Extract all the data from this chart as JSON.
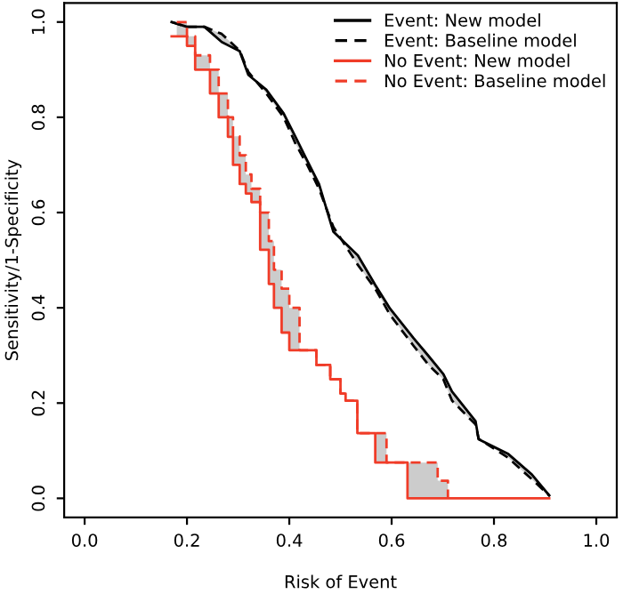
{
  "chart_data": {
    "type": "line",
    "xlabel": "Risk of Event",
    "ylabel": "Sensitivity/1-Specificity",
    "xlim": [
      -0.04,
      1.04
    ],
    "ylim": [
      -0.04,
      1.04
    ],
    "xticks": [
      {
        "value": 0,
        "label": "0.0"
      },
      {
        "value": 0.2,
        "label": "0.2"
      },
      {
        "value": 0.4,
        "label": "0.4"
      },
      {
        "value": 0.6,
        "label": "0.6"
      },
      {
        "value": 0.8,
        "label": "0.8"
      },
      {
        "value": 1,
        "label": "1.0"
      }
    ],
    "yticks": [
      {
        "value": 0,
        "label": "0.0"
      },
      {
        "value": 0.2,
        "label": "0.2"
      },
      {
        "value": 0.4,
        "label": "0.4"
      },
      {
        "value": 0.6,
        "label": "0.6"
      },
      {
        "value": 0.8,
        "label": "0.8"
      },
      {
        "value": 1,
        "label": "1.0"
      }
    ],
    "grid": false,
    "legend": "top right",
    "series": [
      {
        "name": "Event: New model",
        "color": "#000000",
        "line_style": "solid",
        "x": [
          0.17,
          0.2,
          0.234,
          0.268,
          0.303,
          0.32,
          0.355,
          0.389,
          0.412,
          0.435,
          0.458,
          0.486,
          0.534,
          0.568,
          0.597,
          0.643,
          0.672,
          0.701,
          0.718,
          0.764,
          0.77,
          0.828,
          0.874,
          0.908
        ],
        "values": [
          1.0,
          0.99,
          0.99,
          0.958,
          0.939,
          0.889,
          0.858,
          0.808,
          0.759,
          0.709,
          0.66,
          0.56,
          0.51,
          0.448,
          0.398,
          0.336,
          0.299,
          0.261,
          0.224,
          0.162,
          0.124,
          0.093,
          0.05,
          0.006
        ]
      },
      {
        "name": "Event: Baseline model",
        "color": "#000000",
        "line_style": "dashed",
        "x": [
          0.17,
          0.2,
          0.234,
          0.268,
          0.303,
          0.32,
          0.355,
          0.389,
          0.412,
          0.435,
          0.458,
          0.486,
          0.534,
          0.568,
          0.597,
          0.643,
          0.672,
          0.701,
          0.718,
          0.764,
          0.77,
          0.828,
          0.874,
          0.908
        ],
        "values": [
          1.0,
          0.99,
          0.99,
          0.975,
          0.94,
          0.895,
          0.85,
          0.8,
          0.745,
          0.7,
          0.65,
          0.57,
          0.49,
          0.44,
          0.385,
          0.32,
          0.28,
          0.25,
          0.205,
          0.155,
          0.125,
          0.085,
          0.04,
          0.006
        ],
        "lower": [
          1.0,
          0.99,
          0.99,
          0.958,
          0.939,
          0.889,
          0.858,
          0.808,
          0.759,
          0.709,
          0.66,
          0.56,
          0.51,
          0.448,
          0.398,
          0.336,
          0.299,
          0.261,
          0.224,
          0.162,
          0.124,
          0.093,
          0.05,
          0.006
        ],
        "upper": [
          1.0,
          0.99,
          0.99,
          0.975,
          0.94,
          0.895,
          0.85,
          0.8,
          0.745,
          0.7,
          0.65,
          0.57,
          0.49,
          0.44,
          0.385,
          0.32,
          0.28,
          0.25,
          0.205,
          0.155,
          0.125,
          0.085,
          0.04,
          0.006
        ]
      },
      {
        "name": "No Event: New model",
        "type": "step",
        "color": "#f03c28",
        "line_style": "solid",
        "x": [
          0.17,
          0.18,
          0.2,
          0.216,
          0.245,
          0.262,
          0.28,
          0.29,
          0.303,
          0.315,
          0.326,
          0.343,
          0.36,
          0.37,
          0.385,
          0.4,
          0.42,
          0.453,
          0.48,
          0.5,
          0.51,
          0.533,
          0.568,
          0.59,
          0.631,
          0.69,
          0.71,
          0.908
        ],
        "values": [
          0.97,
          0.97,
          0.95,
          0.9,
          0.85,
          0.8,
          0.759,
          0.7,
          0.66,
          0.64,
          0.622,
          0.522,
          0.45,
          0.4,
          0.348,
          0.311,
          0.311,
          0.28,
          0.25,
          0.22,
          0.205,
          0.137,
          0.075,
          0.075,
          0.0,
          0.0,
          0.0,
          0.0
        ]
      },
      {
        "name": "No Event: Baseline model",
        "type": "step",
        "color": "#f03c28",
        "line_style": "dashed",
        "x": [
          0.18,
          0.2,
          0.216,
          0.245,
          0.262,
          0.28,
          0.29,
          0.303,
          0.315,
          0.326,
          0.343,
          0.36,
          0.37,
          0.385,
          0.4,
          0.42,
          0.453,
          0.48,
          0.5,
          0.51,
          0.533,
          0.568,
          0.59,
          0.631,
          0.69,
          0.71
        ],
        "values": [
          1.0,
          0.97,
          0.93,
          0.9,
          0.85,
          0.8,
          0.76,
          0.72,
          0.68,
          0.65,
          0.6,
          0.54,
          0.48,
          0.44,
          0.4,
          0.311,
          0.28,
          0.25,
          0.22,
          0.205,
          0.137,
          0.137,
          0.075,
          0.075,
          0.037,
          0.0
        ],
        "lower": [
          0.97,
          0.95,
          0.9,
          0.85,
          0.8,
          0.759,
          0.7,
          0.66,
          0.64,
          0.622,
          0.522,
          0.45,
          0.4,
          0.348,
          0.311,
          0.311,
          0.28,
          0.25,
          0.22,
          0.205,
          0.137,
          0.075,
          0.075,
          0.0,
          0.0,
          0.0
        ],
        "upper": [
          1.0,
          0.97,
          0.93,
          0.9,
          0.85,
          0.8,
          0.76,
          0.72,
          0.68,
          0.65,
          0.6,
          0.54,
          0.48,
          0.44,
          0.4,
          0.311,
          0.28,
          0.25,
          0.22,
          0.205,
          0.137,
          0.137,
          0.075,
          0.075,
          0.037,
          0.0
        ]
      }
    ]
  }
}
